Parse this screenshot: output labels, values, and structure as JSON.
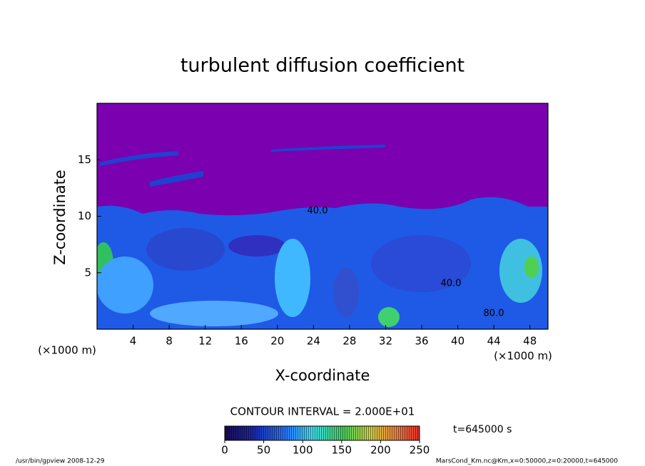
{
  "chart_data": {
    "type": "contour",
    "title": "turbulent diffusion coefficient",
    "xlabel": "X-coordinate",
    "ylabel": "Z-coordinate",
    "x_unit": "(×1000 m)",
    "y_unit": "(×1000 m)",
    "xlim": [
      0,
      50
    ],
    "xticks": [
      4,
      8,
      12,
      16,
      20,
      24,
      28,
      32,
      36,
      40,
      44,
      48
    ],
    "ylim": [
      0,
      20
    ],
    "yticks": [
      5,
      10,
      15
    ],
    "contour_interval": "CONTOUR INTERVAL = 2.000E+01",
    "contour_labels": [
      "40.0",
      "40.0",
      "80.0"
    ],
    "colorbar": {
      "lim": [
        0,
        250
      ],
      "ticks": [
        0,
        50,
        100,
        150,
        200,
        250
      ]
    },
    "time_label": "t=645000 s",
    "footer_left": "/usr/bin/gpview  2008-12-29",
    "footer_right": "MarsCond_Km.nc@Km,x=0:50000,z=0:20000,t=645000"
  }
}
